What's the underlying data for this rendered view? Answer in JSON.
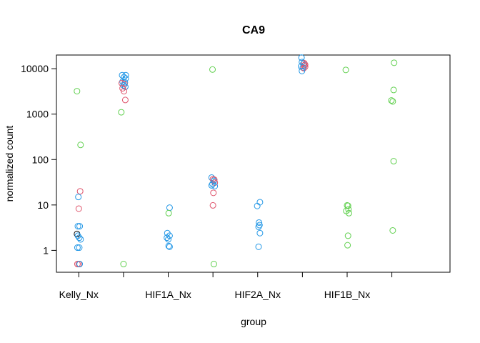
{
  "chart_data": {
    "type": "scatter",
    "title": "CA9",
    "xlabel": "group",
    "ylabel": "normalized count",
    "y_scale": "log",
    "ylim": [
      0.33,
      20000
    ],
    "xlim": [
      0.5,
      9.3
    ],
    "grid": false,
    "legend": "none",
    "x_tick_labels": [
      {
        "pos": 1,
        "label": "Kelly_Nx"
      },
      {
        "pos": 2,
        "label": ""
      },
      {
        "pos": 3,
        "label": "HIF1A_Nx"
      },
      {
        "pos": 4,
        "label": ""
      },
      {
        "pos": 5,
        "label": "HIF2A_Nx"
      },
      {
        "pos": 6,
        "label": ""
      },
      {
        "pos": 7,
        "label": "HIF1B_Nx"
      },
      {
        "pos": 8,
        "label": ""
      }
    ],
    "y_ticks": [
      {
        "value": 1,
        "label": "1"
      },
      {
        "value": 10,
        "label": "10"
      },
      {
        "value": 100,
        "label": "100"
      },
      {
        "value": 1000,
        "label": "1000"
      },
      {
        "value": 10000,
        "label": "10000"
      }
    ],
    "colors": {
      "black": "#000000",
      "red": "#DF536B",
      "green": "#61D04F",
      "blue": "#2297E6"
    },
    "points": [
      {
        "x": 0.96,
        "y": 3200,
        "c": "green"
      },
      {
        "x": 1.04,
        "y": 210,
        "c": "green"
      },
      {
        "x": 1.03,
        "y": 20,
        "c": "red"
      },
      {
        "x": 0.99,
        "y": 15,
        "c": "blue"
      },
      {
        "x": 1.0,
        "y": 8.3,
        "c": "red"
      },
      {
        "x": 0.98,
        "y": 3.4,
        "c": "blue"
      },
      {
        "x": 1.02,
        "y": 3.4,
        "c": "blue"
      },
      {
        "x": 0.96,
        "y": 2.3,
        "c": "black"
      },
      {
        "x": 0.98,
        "y": 2.1,
        "c": "blue"
      },
      {
        "x": 1.01,
        "y": 1.9,
        "c": "blue"
      },
      {
        "x": 1.04,
        "y": 1.75,
        "c": "blue"
      },
      {
        "x": 0.97,
        "y": 1.15,
        "c": "blue"
      },
      {
        "x": 1.01,
        "y": 1.15,
        "c": "blue"
      },
      {
        "x": 0.97,
        "y": 0.5,
        "c": "red"
      },
      {
        "x": 1.0,
        "y": 0.5,
        "c": "red"
      },
      {
        "x": 1.02,
        "y": 0.5,
        "c": "blue"
      },
      {
        "x": 1.97,
        "y": 7200,
        "c": "blue"
      },
      {
        "x": 2.05,
        "y": 7200,
        "c": "blue"
      },
      {
        "x": 2.01,
        "y": 6500,
        "c": "blue"
      },
      {
        "x": 2.05,
        "y": 6100,
        "c": "blue"
      },
      {
        "x": 1.98,
        "y": 5200,
        "c": "blue"
      },
      {
        "x": 2.03,
        "y": 5000,
        "c": "blue"
      },
      {
        "x": 1.96,
        "y": 4800,
        "c": "red"
      },
      {
        "x": 2.02,
        "y": 4600,
        "c": "red"
      },
      {
        "x": 2.0,
        "y": 4300,
        "c": "blue"
      },
      {
        "x": 2.04,
        "y": 4000,
        "c": "blue"
      },
      {
        "x": 1.98,
        "y": 3700,
        "c": "red"
      },
      {
        "x": 2.01,
        "y": 3200,
        "c": "red"
      },
      {
        "x": 2.04,
        "y": 2050,
        "c": "red"
      },
      {
        "x": 1.95,
        "y": 1100,
        "c": "green"
      },
      {
        "x": 2.0,
        "y": 0.5,
        "c": "green"
      },
      {
        "x": 3.03,
        "y": 8.7,
        "c": "blue"
      },
      {
        "x": 3.01,
        "y": 6.6,
        "c": "green"
      },
      {
        "x": 2.98,
        "y": 2.4,
        "c": "blue"
      },
      {
        "x": 3.03,
        "y": 2.1,
        "c": "blue"
      },
      {
        "x": 2.97,
        "y": 1.9,
        "c": "blue"
      },
      {
        "x": 3.0,
        "y": 1.75,
        "c": "blue"
      },
      {
        "x": 3.01,
        "y": 1.25,
        "c": "blue"
      },
      {
        "x": 3.03,
        "y": 1.2,
        "c": "blue"
      },
      {
        "x": 3.99,
        "y": 9600,
        "c": "green"
      },
      {
        "x": 3.97,
        "y": 40,
        "c": "blue"
      },
      {
        "x": 4.0,
        "y": 37,
        "c": "red"
      },
      {
        "x": 4.03,
        "y": 36,
        "c": "red"
      },
      {
        "x": 4.02,
        "y": 34,
        "c": "blue"
      },
      {
        "x": 4.04,
        "y": 31,
        "c": "red"
      },
      {
        "x": 3.99,
        "y": 29,
        "c": "blue"
      },
      {
        "x": 3.97,
        "y": 27,
        "c": "blue"
      },
      {
        "x": 4.04,
        "y": 26,
        "c": "blue"
      },
      {
        "x": 4.01,
        "y": 18.5,
        "c": "red"
      },
      {
        "x": 4.0,
        "y": 9.8,
        "c": "red"
      },
      {
        "x": 4.02,
        "y": 0.5,
        "c": "green"
      },
      {
        "x": 5.05,
        "y": 11.5,
        "c": "blue"
      },
      {
        "x": 4.99,
        "y": 9.5,
        "c": "blue"
      },
      {
        "x": 5.03,
        "y": 4.1,
        "c": "blue"
      },
      {
        "x": 5.04,
        "y": 3.6,
        "c": "blue"
      },
      {
        "x": 5.02,
        "y": 3.3,
        "c": "blue"
      },
      {
        "x": 5.05,
        "y": 2.4,
        "c": "blue"
      },
      {
        "x": 5.02,
        "y": 1.2,
        "c": "blue"
      },
      {
        "x": 5.98,
        "y": 17500,
        "c": "blue"
      },
      {
        "x": 5.99,
        "y": 14000,
        "c": "blue"
      },
      {
        "x": 6.04,
        "y": 13200,
        "c": "red"
      },
      {
        "x": 6.02,
        "y": 12800,
        "c": "blue"
      },
      {
        "x": 6.06,
        "y": 12300,
        "c": "red"
      },
      {
        "x": 6.04,
        "y": 11800,
        "c": "red"
      },
      {
        "x": 5.97,
        "y": 11200,
        "c": "blue"
      },
      {
        "x": 6.06,
        "y": 11000,
        "c": "red"
      },
      {
        "x": 6.01,
        "y": 10600,
        "c": "blue"
      },
      {
        "x": 6.03,
        "y": 10300,
        "c": "red"
      },
      {
        "x": 5.99,
        "y": 8900,
        "c": "blue"
      },
      {
        "x": 6.97,
        "y": 9400,
        "c": "green"
      },
      {
        "x": 7.0,
        "y": 9.8,
        "c": "green"
      },
      {
        "x": 7.02,
        "y": 9.6,
        "c": "green"
      },
      {
        "x": 7.03,
        "y": 8.0,
        "c": "green"
      },
      {
        "x": 6.98,
        "y": 7.4,
        "c": "green"
      },
      {
        "x": 7.04,
        "y": 6.6,
        "c": "green"
      },
      {
        "x": 7.02,
        "y": 2.1,
        "c": "green"
      },
      {
        "x": 7.01,
        "y": 1.3,
        "c": "green"
      },
      {
        "x": 8.05,
        "y": 13500,
        "c": "green"
      },
      {
        "x": 8.04,
        "y": 3400,
        "c": "green"
      },
      {
        "x": 7.99,
        "y": 2000,
        "c": "green"
      },
      {
        "x": 8.02,
        "y": 1900,
        "c": "green"
      },
      {
        "x": 8.04,
        "y": 92,
        "c": "green"
      },
      {
        "x": 8.02,
        "y": 2.75,
        "c": "green"
      }
    ]
  }
}
